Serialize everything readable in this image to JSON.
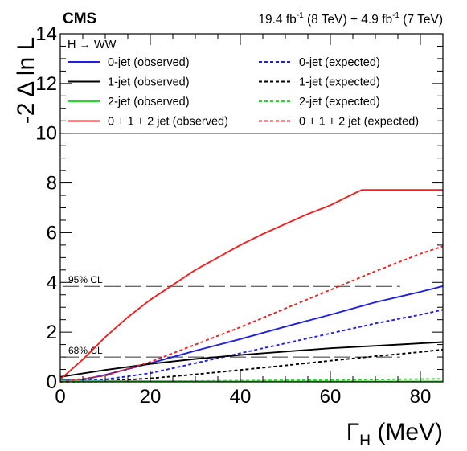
{
  "header": {
    "experiment": "CMS",
    "lumi_8": "19.4 fb",
    "lumi_8_exp": "-1",
    "lumi_8_energy": " (8 TeV) + 4.9 fb",
    "lumi_7_exp": "-1",
    "lumi_7_energy": " (7 TeV)"
  },
  "legend": {
    "title": "H → WW"
  },
  "colors": {
    "blue": "#1f1fdd",
    "black": "#000000",
    "green": "#22dd22",
    "red": "#ee2222"
  },
  "chart_data": {
    "type": "line",
    "xlabel_main": "Γ",
    "xlabel_sub": "H",
    "xlabel_unit": " (MeV)",
    "ylabel": "-2 Δ ln L",
    "xlim": [
      0,
      85
    ],
    "ylim": [
      0,
      14
    ],
    "x_ticks": [
      0,
      20,
      40,
      60,
      80
    ],
    "y_ticks": [
      0,
      2,
      4,
      6,
      8,
      10,
      12,
      14
    ],
    "grid": false,
    "legend_placement": "top",
    "reference_lines": [
      {
        "label": "95% CL",
        "y": 3.84
      },
      {
        "label": "68% CL",
        "y": 1.0
      }
    ],
    "series": [
      {
        "name": "0-jet (observed)",
        "color": "blue",
        "style": "solid",
        "points": [
          [
            0,
            0.08
          ],
          [
            4,
            0.05
          ],
          [
            10,
            0.28
          ],
          [
            20,
            0.75
          ],
          [
            30,
            1.25
          ],
          [
            40,
            1.72
          ],
          [
            50,
            2.22
          ],
          [
            60,
            2.7
          ],
          [
            70,
            3.2
          ],
          [
            80,
            3.62
          ],
          [
            85,
            3.85
          ]
        ]
      },
      {
        "name": "0-jet (expected)",
        "color": "blue",
        "style": "dashed",
        "points": [
          [
            0,
            0
          ],
          [
            10,
            0.1
          ],
          [
            20,
            0.35
          ],
          [
            30,
            0.75
          ],
          [
            40,
            1.15
          ],
          [
            50,
            1.55
          ],
          [
            60,
            1.95
          ],
          [
            70,
            2.35
          ],
          [
            80,
            2.7
          ],
          [
            85,
            2.9
          ]
        ]
      },
      {
        "name": "1-jet (observed)",
        "color": "black",
        "style": "solid",
        "points": [
          [
            0,
            0.2
          ],
          [
            10,
            0.48
          ],
          [
            20,
            0.72
          ],
          [
            30,
            0.92
          ],
          [
            40,
            1.08
          ],
          [
            50,
            1.22
          ],
          [
            60,
            1.35
          ],
          [
            70,
            1.45
          ],
          [
            80,
            1.55
          ],
          [
            85,
            1.6
          ]
        ]
      },
      {
        "name": "1-jet (expected)",
        "color": "black",
        "style": "dashed",
        "points": [
          [
            0,
            0
          ],
          [
            10,
            0.04
          ],
          [
            20,
            0.14
          ],
          [
            30,
            0.3
          ],
          [
            40,
            0.48
          ],
          [
            50,
            0.66
          ],
          [
            60,
            0.85
          ],
          [
            70,
            1.03
          ],
          [
            80,
            1.2
          ],
          [
            85,
            1.3
          ]
        ]
      },
      {
        "name": "2-jet (observed)",
        "color": "green",
        "style": "solid",
        "points": [
          [
            0,
            0.05
          ],
          [
            20,
            0.03
          ],
          [
            40,
            0.02
          ],
          [
            60,
            0.02
          ],
          [
            85,
            0.02
          ]
        ]
      },
      {
        "name": "2-jet (expected)",
        "color": "green",
        "style": "dashed",
        "points": [
          [
            0,
            0
          ],
          [
            20,
            0.02
          ],
          [
            40,
            0.05
          ],
          [
            60,
            0.08
          ],
          [
            85,
            0.12
          ]
        ]
      },
      {
        "name": "0 + 1 + 2 jet (observed)",
        "color": "red",
        "style": "solid",
        "points": [
          [
            0,
            0.1
          ],
          [
            5,
            0.9
          ],
          [
            10,
            1.8
          ],
          [
            15,
            2.6
          ],
          [
            20,
            3.3
          ],
          [
            25,
            3.9
          ],
          [
            30,
            4.5
          ],
          [
            35,
            5.0
          ],
          [
            40,
            5.5
          ],
          [
            45,
            5.95
          ],
          [
            50,
            6.35
          ],
          [
            55,
            6.75
          ],
          [
            60,
            7.1
          ],
          [
            65,
            7.55
          ],
          [
            67,
            7.72
          ],
          [
            70,
            7.72
          ],
          [
            75,
            7.72
          ],
          [
            80,
            7.72
          ],
          [
            85,
            7.72
          ]
        ]
      },
      {
        "name": "0 + 1 + 2 jet (expected)",
        "color": "red",
        "style": "dashed",
        "points": [
          [
            0,
            0
          ],
          [
            10,
            0.25
          ],
          [
            20,
            0.8
          ],
          [
            30,
            1.5
          ],
          [
            40,
            2.2
          ],
          [
            50,
            2.95
          ],
          [
            60,
            3.7
          ],
          [
            70,
            4.45
          ],
          [
            80,
            5.15
          ],
          [
            85,
            5.45
          ]
        ]
      }
    ]
  }
}
